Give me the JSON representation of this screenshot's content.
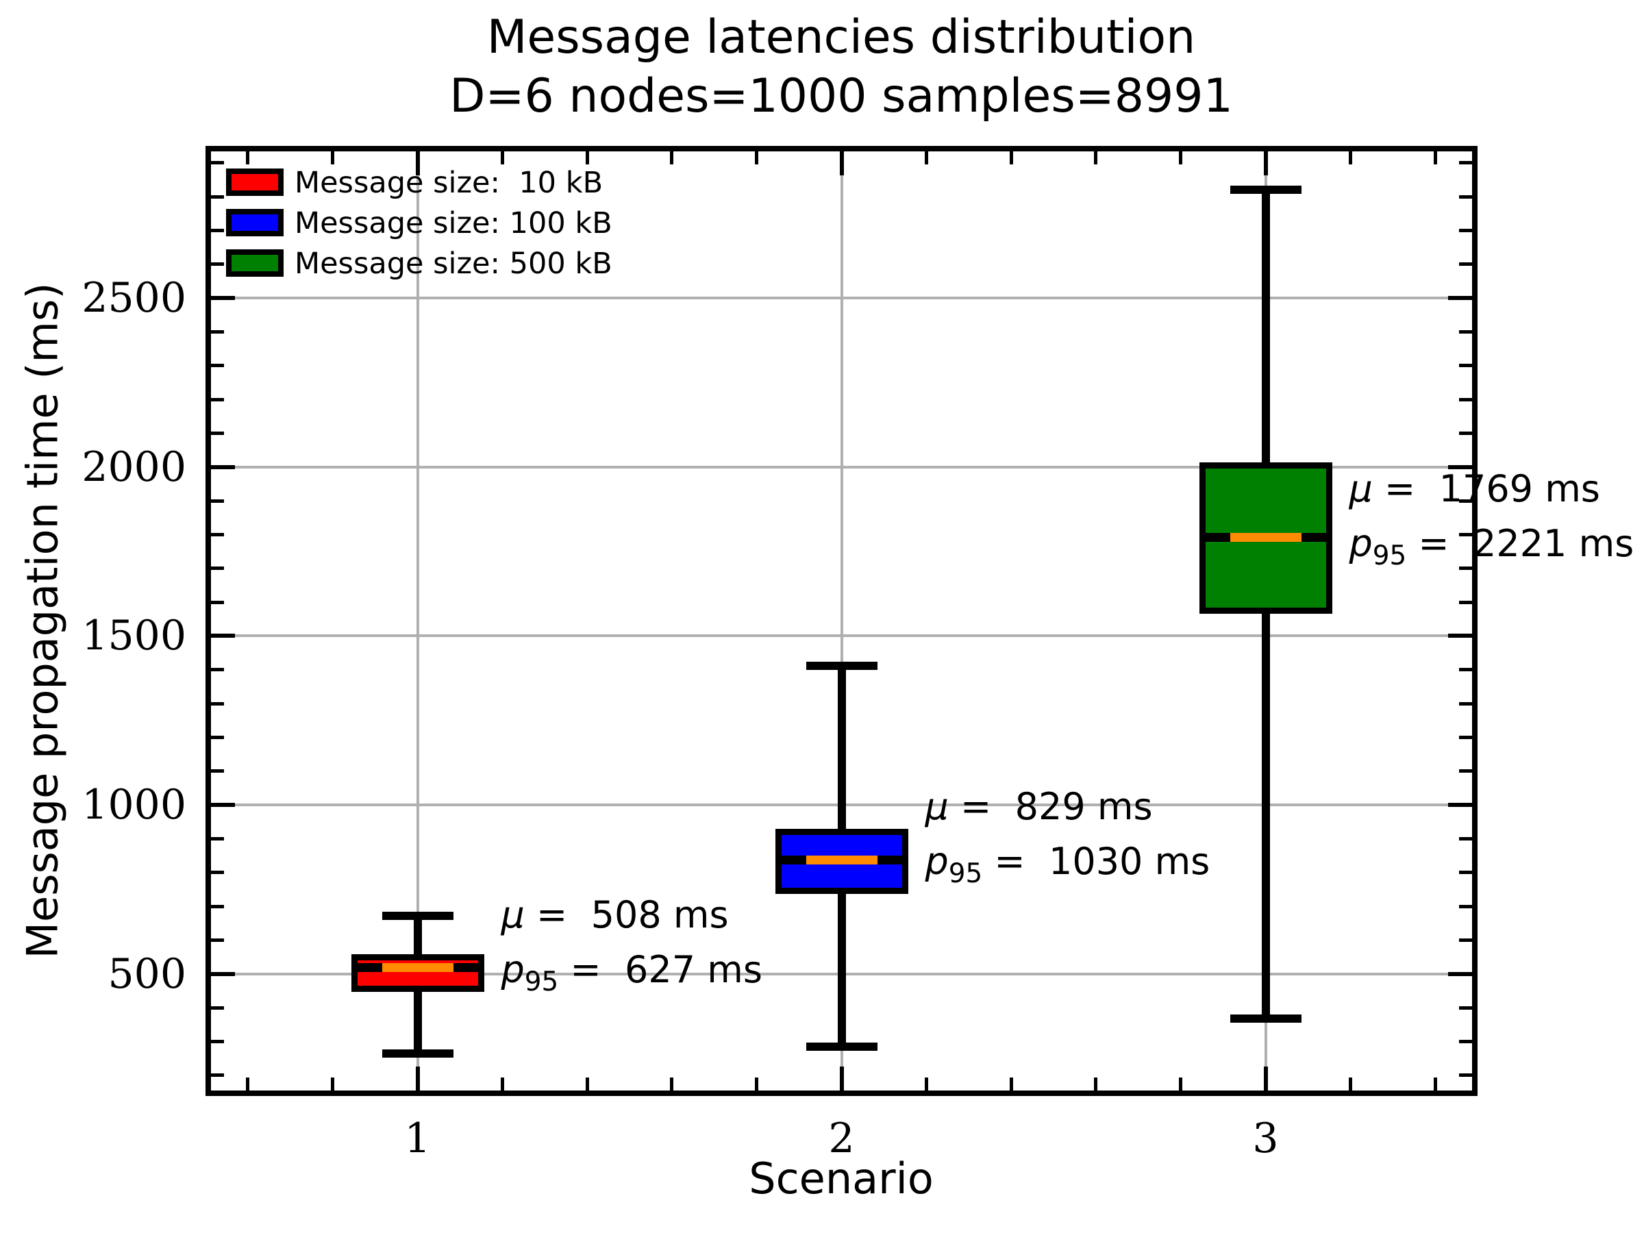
{
  "title": {
    "line1": "Message latencies distribution",
    "line2": "D=6 nodes=1000 samples=8991"
  },
  "chart_data": {
    "type": "boxplot",
    "title": "Message latencies distribution",
    "subtitle": "D=6 nodes=1000 samples=8991",
    "xlabel": "Scenario",
    "ylabel": "Message propagation time (ms)",
    "xlim": [
      0.5,
      3.5
    ],
    "ylim": [
      139,
      2950
    ],
    "grid": true,
    "legend_position": "upper-left",
    "yticks": [
      500,
      1000,
      1500,
      2000,
      2500
    ],
    "ytick_labels": [
      "500",
      "1000",
      "1500",
      "2000",
      "2500"
    ],
    "ytick_minor_step": 100,
    "xticks": [
      1,
      2,
      3
    ],
    "xtick_labels": [
      "1",
      "2",
      "3"
    ],
    "xtick_minor_step": 0.2,
    "colors": {
      "median": "#ff8c00",
      "grid": "#b0b0b0",
      "box_edge": "#000000"
    },
    "series": [
      {
        "x": 1,
        "tick_label": "1",
        "legend_label": "Message size:  10 kB",
        "fill_color": "#ff0000",
        "whisker_low": 265,
        "q1": 458,
        "median": 518,
        "q3": 550,
        "whisker_high": 672,
        "mean_ms": 508,
        "p95_ms": 627,
        "annotation": {
          "mu_label": "μ",
          "mu_text": " =  508 ms",
          "p_label": "p",
          "p_sub": "95",
          "p_text": " =  627 ms"
        }
      },
      {
        "x": 2,
        "tick_label": "2",
        "legend_label": "Message size: 100 kB",
        "fill_color": "#0000ff",
        "whisker_low": 285,
        "q1": 748,
        "median": 836,
        "q3": 921,
        "whisker_high": 1412,
        "mean_ms": 829,
        "p95_ms": 1030,
        "annotation": {
          "mu_label": "μ",
          "mu_text": " =  829 ms",
          "p_label": "p",
          "p_sub": "95",
          "p_text": " =  1030 ms"
        }
      },
      {
        "x": 3,
        "tick_label": "3",
        "legend_label": "Message size: 500 kB",
        "fill_color": "#008000",
        "whisker_low": 368,
        "q1": 1575,
        "median": 1790,
        "q3": 2005,
        "whisker_high": 2820,
        "mean_ms": 1769,
        "p95_ms": 2221,
        "annotation": {
          "mu_label": "μ",
          "mu_text": " =  1769 ms",
          "p_label": "p",
          "p_sub": "95",
          "p_text": " =  2221 ms"
        }
      }
    ]
  }
}
